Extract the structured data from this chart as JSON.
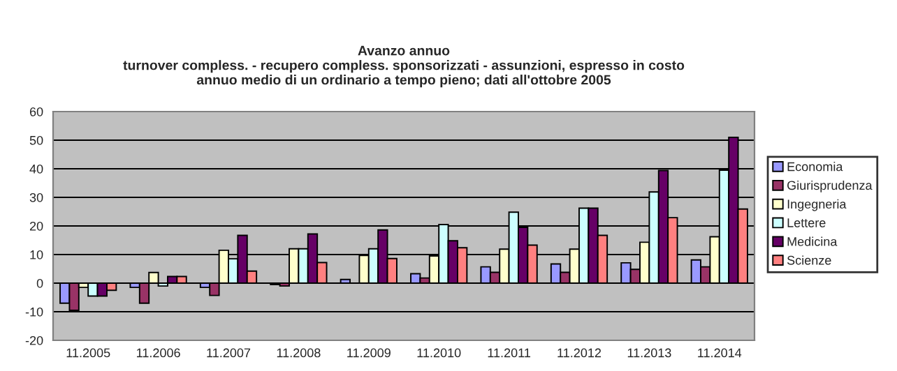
{
  "chart_data": {
    "type": "bar",
    "title": "Avanzo annuo\nturnover compless. - recupero compless. sponsorizzati - assunzioni, espresso in costo\nannuo medio di un ordinario a tempo pieno; dati all'ottobre 2005",
    "categories": [
      "11.2005",
      "11.2006",
      "11.2007",
      "11.2008",
      "11.2009",
      "11.2010",
      "11.2011",
      "11.2012",
      "11.2013",
      "11.2014"
    ],
    "series": [
      {
        "name": "Economia",
        "color": "#9999ff",
        "values": [
          -7,
          -1.5,
          -1.5,
          -0.5,
          1.3,
          3.3,
          5.7,
          6.7,
          7.1,
          8.1
        ]
      },
      {
        "name": "Giurisprudenza",
        "color": "#993366",
        "values": [
          -9.5,
          -7,
          -4.3,
          -1,
          null,
          1.8,
          3.8,
          3.8,
          4.8,
          5.7
        ]
      },
      {
        "name": "Ingegneria",
        "color": "#ffffcc",
        "values": [
          -1.5,
          3.7,
          11.5,
          12,
          9.7,
          9.5,
          11.9,
          11.9,
          14.3,
          16.2
        ]
      },
      {
        "name": "Lettere",
        "color": "#ccffff",
        "values": [
          -4.5,
          -1,
          8.5,
          12,
          12,
          20.5,
          24.8,
          26.2,
          31.9,
          39.5
        ]
      },
      {
        "name": "Medicina",
        "color": "#660066",
        "values": [
          -4.5,
          2.3,
          16.7,
          17.2,
          18.6,
          14.8,
          19.5,
          26.2,
          39.4,
          51
        ]
      },
      {
        "name": "Scienze",
        "color": "#ff8080",
        "values": [
          -2.5,
          2.3,
          4.2,
          7.2,
          8.6,
          12.4,
          13.3,
          16.7,
          22.9,
          25.9
        ]
      }
    ],
    "ylim": [
      -20,
      60
    ],
    "yticks": [
      -20,
      -10,
      0,
      10,
      20,
      30,
      40,
      50,
      60
    ],
    "grid": "y",
    "legend": "right"
  }
}
